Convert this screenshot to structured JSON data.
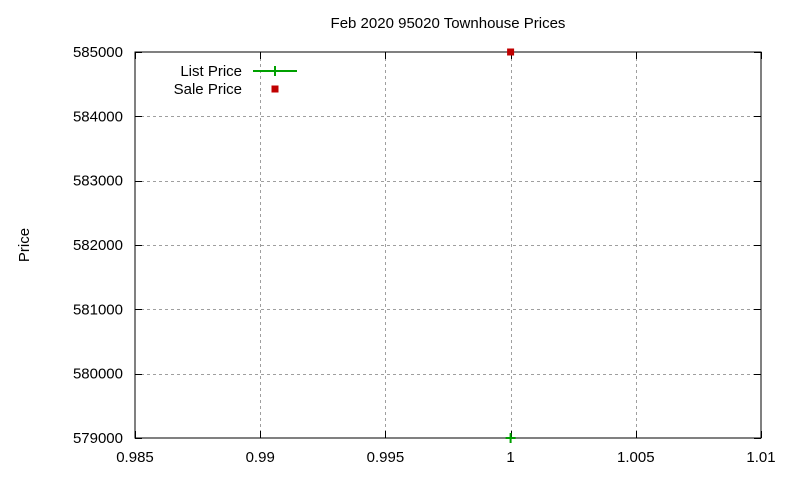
{
  "window": {
    "background": "#ffffff"
  },
  "chart_data": {
    "type": "scatter",
    "title": "Feb 2020 95020 Townhouse Prices",
    "xlabel": "",
    "ylabel": "Price",
    "xlim": [
      0.985,
      1.01
    ],
    "ylim": [
      579000,
      585000
    ],
    "xticks": [
      0.985,
      0.99,
      0.995,
      1,
      1.005,
      1.01
    ],
    "xtick_labels": [
      "0.985",
      "0.99",
      "0.995",
      "1",
      "1.005",
      "1.01"
    ],
    "yticks": [
      579000,
      580000,
      581000,
      582000,
      583000,
      584000,
      585000
    ],
    "ytick_labels": [
      "579000",
      "580000",
      "581000",
      "582000",
      "583000",
      "584000",
      "585000"
    ],
    "grid": true,
    "legend_position": "top-left-inside",
    "series": [
      {
        "name": "List Price",
        "style": "linespoints",
        "marker": "plus",
        "color": "#00a000",
        "points": [
          {
            "x": 1,
            "y": 579000
          }
        ]
      },
      {
        "name": "Sale Price",
        "style": "points",
        "marker": "filled-square",
        "color": "#c00000",
        "points": [
          {
            "x": 1,
            "y": 585000
          }
        ]
      }
    ],
    "colors": {
      "axis": "#000000",
      "grid": "#9f9f9f",
      "text": "#000000",
      "background": "#ffffff"
    }
  }
}
